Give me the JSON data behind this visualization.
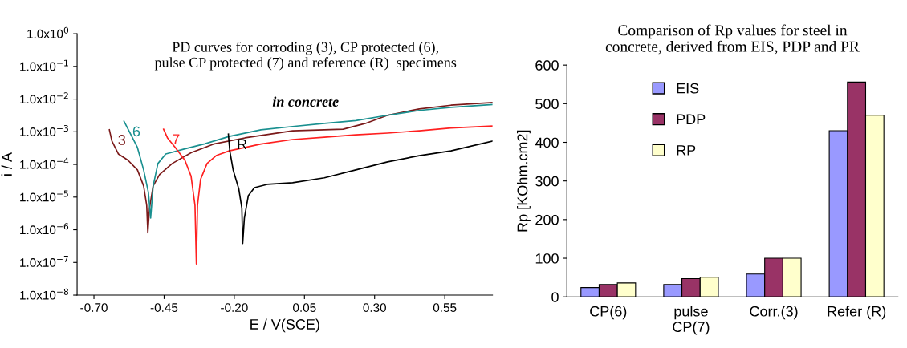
{
  "chart_data": [
    {
      "type": "line",
      "title": "PD curves for corroding (3), CP protected (6),\npulse CP protected (7) and reference (R)  specimens",
      "subtitle": "in concrete",
      "xlabel": "E / V(SCE)",
      "ylabel": "i / A",
      "log": "y",
      "grid": false,
      "xlim": [
        -0.76,
        0.72
      ],
      "xticks": [
        {
          "value": -0.7,
          "label": "-0.70"
        },
        {
          "value": -0.45,
          "label": "-0.45"
        },
        {
          "value": -0.2,
          "label": "-0.20"
        },
        {
          "value": 0.05,
          "label": "0.05"
        },
        {
          "value": 0.3,
          "label": "0.30"
        },
        {
          "value": 0.55,
          "label": "0.55"
        }
      ],
      "ylim": [
        1e-08,
        1
      ],
      "yticks": [
        {
          "value": 1e-08,
          "label": "1.0x10$^{−8}$"
        },
        {
          "value": 1e-07,
          "label": "1.0x10$^{−7}$"
        },
        {
          "value": 1e-06,
          "label": "1.0x10$^{−6}$"
        },
        {
          "value": 1e-05,
          "label": "1.0x10$^{−5}$"
        },
        {
          "value": 0.0001,
          "label": "1.0x10$^{−4}$"
        },
        {
          "value": 0.001,
          "label": "1.0x10$^{−3}$"
        },
        {
          "value": 0.01,
          "label": "1.0x10$^{−2}$"
        },
        {
          "value": 0.1,
          "label": "1.0x10$^{−1}$"
        },
        {
          "value": 1,
          "label": "1.0x10$^{0}$"
        }
      ],
      "series": [
        {
          "name": "3",
          "color": "#7b1a1a",
          "x": [
            -0.645,
            -0.636,
            -0.613,
            -0.579,
            -0.545,
            -0.523,
            -0.512,
            -0.508,
            -0.502,
            -0.489,
            -0.466,
            -0.421,
            -0.353,
            -0.274,
            -0.162,
            0.008,
            0.188,
            0.267,
            0.346,
            0.459,
            0.572,
            0.72
          ],
          "values": [
            0.00115,
            0.00052,
            0.00021,
            0.000135,
            6.8e-05,
            2.2e-05,
            5.6e-06,
            8e-07,
            4.6e-06,
            2.2e-05,
            4.9e-05,
            0.000107,
            0.00023,
            0.00042,
            0.00065,
            0.00107,
            0.0012,
            0.0018,
            0.0032,
            0.005,
            0.0065,
            0.0078
          ]
        },
        {
          "name": "6",
          "color": "#1a9090",
          "x": [
            -0.593,
            -0.568,
            -0.545,
            -0.523,
            -0.506,
            -0.498,
            -0.489,
            -0.472,
            -0.444,
            -0.376,
            -0.308,
            -0.218,
            -0.105,
            0.008,
            0.121,
            0.233,
            0.346,
            0.459,
            0.572,
            0.72
          ],
          "values": [
            0.0021,
            0.00081,
            0.00033,
            6.8e-05,
            1.4e-05,
            2.3e-06,
            2.2e-05,
            0.000107,
            0.00021,
            0.0003,
            0.00042,
            0.00072,
            0.00115,
            0.00145,
            0.0018,
            0.0022,
            0.0032,
            0.0045,
            0.0056,
            0.0068
          ]
        },
        {
          "name": "7",
          "color": "#ff2020",
          "x": [
            -0.452,
            -0.438,
            -0.41,
            -0.376,
            -0.354,
            -0.34,
            -0.335,
            -0.331,
            -0.32,
            -0.297,
            -0.263,
            -0.218,
            -0.105,
            0.008,
            0.121,
            0.233,
            0.346,
            0.459,
            0.572,
            0.72
          ],
          "values": [
            0.0012,
            0.00065,
            0.00033,
            0.000135,
            4.4e-05,
            5.6e-06,
            9e-08,
            5.6e-06,
            3.5e-05,
            0.000107,
            0.00019,
            0.00026,
            0.00042,
            0.00058,
            0.00068,
            0.00081,
            0.00091,
            0.00107,
            0.0013,
            0.0015
          ]
        },
        {
          "name": "R",
          "color": "#000000",
          "x": [
            -0.221,
            -0.216,
            -0.204,
            -0.184,
            -0.173,
            -0.17,
            -0.164,
            -0.15,
            -0.128,
            -0.083,
            0.008,
            0.121,
            0.233,
            0.346,
            0.459,
            0.572,
            0.72
          ],
          "values": [
            0.00085,
            0.00026,
            6.8e-05,
            1.8e-05,
            4.6e-06,
            3.8e-07,
            2.3e-06,
            1.1e-05,
            1.95e-05,
            2.45e-05,
            2.75e-05,
            3.9e-05,
            6.8e-05,
            0.00012,
            0.000185,
            0.00026,
            0.00052
          ]
        }
      ]
    },
    {
      "type": "bar",
      "title": "Comparison of Rp values for steel in\nconcrete, derived from EIS, PDP and PR",
      "ylabel": "Rp [KOhm.cm2]",
      "grid": false,
      "legend": "top left",
      "categories": [
        "CP(6)",
        "pulse\nCP(7)",
        "Corr.(3)",
        "Refer (R)"
      ],
      "ylim": [
        0,
        600
      ],
      "yticks": [
        0,
        100,
        200,
        300,
        400,
        500,
        600
      ],
      "series": [
        {
          "name": "EIS",
          "color": "#9999ff",
          "values": [
            24,
            32,
            59,
            430
          ]
        },
        {
          "name": "PDP",
          "color": "#993366",
          "values": [
            32,
            47,
            100,
            556
          ]
        },
        {
          "name": "RP",
          "color": "#ffffcc",
          "values": [
            36,
            51,
            100,
            470
          ]
        }
      ]
    }
  ]
}
